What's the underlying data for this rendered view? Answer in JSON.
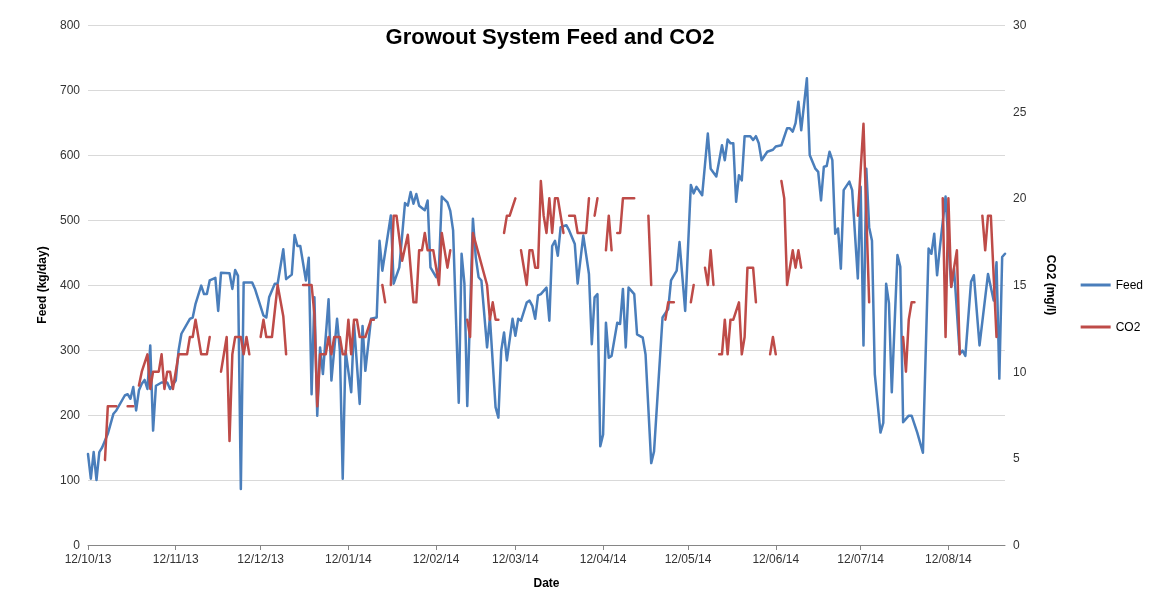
{
  "chart_data": {
    "type": "line",
    "title": "Growout System Feed and CO2",
    "xlabel": "Date",
    "ylabel": "Feed (kg/day)",
    "y2label": "CO2 (mg/l)",
    "xlim": [
      "2013-10-12",
      "2014-09-01"
    ],
    "xticks": [
      {
        "value": "2013-10-12",
        "label": "12/10/13"
      },
      {
        "value": "2013-11-12",
        "label": "12/11/13"
      },
      {
        "value": "2013-12-12",
        "label": "12/12/13"
      },
      {
        "value": "2014-01-12",
        "label": "12/01/14"
      },
      {
        "value": "2014-02-12",
        "label": "12/02/14"
      },
      {
        "value": "2014-03-12",
        "label": "12/03/14"
      },
      {
        "value": "2014-04-12",
        "label": "12/04/14"
      },
      {
        "value": "2014-05-12",
        "label": "12/05/14"
      },
      {
        "value": "2014-06-12",
        "label": "12/06/14"
      },
      {
        "value": "2014-07-12",
        "label": "12/07/14"
      },
      {
        "value": "2014-08-12",
        "label": "12/08/14"
      }
    ],
    "ylim": [
      0,
      800
    ],
    "yticks": [
      0,
      100,
      200,
      300,
      400,
      500,
      600,
      700,
      800
    ],
    "y2lim": [
      0,
      30
    ],
    "y2ticks": [
      0,
      5,
      10,
      15,
      20,
      25,
      30
    ],
    "grid": "y",
    "legend": "right",
    "marker": "none",
    "line_style": "solid",
    "series": [
      {
        "name": "Feed",
        "color": "#4a7ebb",
        "x": [
          "2013-10-12",
          "2013-10-13",
          "2013-10-14",
          "2013-10-15",
          "2013-10-16",
          "2013-10-17",
          "2013-10-19",
          "2013-10-21",
          "2013-10-22",
          "2013-10-25",
          "2013-10-26",
          "2013-10-27",
          "2013-10-28",
          "2013-10-29",
          "2013-10-30",
          "2013-10-31",
          "2013-11-01",
          "2013-11-02",
          "2013-11-03",
          "2013-11-04",
          "2013-11-05",
          "2013-11-07",
          "2013-11-09",
          "2013-11-10",
          "2013-11-12",
          "2013-11-13",
          "2013-11-14",
          "2013-11-17",
          "2013-11-18",
          "2013-11-19",
          "2013-11-21",
          "2013-11-22",
          "2013-11-23",
          "2013-11-24",
          "2013-11-26",
          "2013-11-27",
          "2013-11-28",
          "2013-12-01",
          "2013-12-02",
          "2013-12-03",
          "2013-12-04",
          "2013-12-05",
          "2013-12-06",
          "2013-12-09",
          "2013-12-10",
          "2013-12-13",
          "2013-12-14",
          "2013-12-15",
          "2013-12-17",
          "2013-12-18",
          "2013-12-20",
          "2013-12-21",
          "2013-12-23",
          "2013-12-24",
          "2013-12-25",
          "2013-12-26",
          "2013-12-28",
          "2013-12-29",
          "2013-12-30",
          "2013-12-31",
          "2014-01-01",
          "2014-01-02",
          "2014-01-03",
          "2014-01-05",
          "2014-01-06",
          "2014-01-08",
          "2014-01-09",
          "2014-01-10",
          "2014-01-11",
          "2014-01-13",
          "2014-01-14",
          "2014-01-16",
          "2014-01-17",
          "2014-01-18",
          "2014-01-20",
          "2014-01-22",
          "2014-01-23",
          "2014-01-24",
          "2014-01-27",
          "2014-01-28",
          "2014-01-30",
          "2014-02-01",
          "2014-02-02",
          "2014-02-03",
          "2014-02-04",
          "2014-02-05",
          "2014-02-06",
          "2014-02-08",
          "2014-02-09",
          "2014-02-10",
          "2014-02-12",
          "2014-02-13",
          "2014-02-14",
          "2014-02-16",
          "2014-02-17",
          "2014-02-18",
          "2014-02-20",
          "2014-02-21",
          "2014-02-22",
          "2014-02-23",
          "2014-02-25",
          "2014-02-26",
          "2014-02-27",
          "2014-02-28",
          "2014-03-02",
          "2014-03-03",
          "2014-03-05",
          "2014-03-06",
          "2014-03-07",
          "2014-03-08",
          "2014-03-09",
          "2014-03-11",
          "2014-03-12",
          "2014-03-13",
          "2014-03-14",
          "2014-03-16",
          "2014-03-17",
          "2014-03-18",
          "2014-03-19",
          "2014-03-20",
          "2014-03-21",
          "2014-03-23",
          "2014-03-24",
          "2014-03-25",
          "2014-03-26",
          "2014-03-27",
          "2014-03-28",
          "2014-03-30",
          "2014-03-31",
          "2014-04-02",
          "2014-04-03",
          "2014-04-05",
          "2014-04-07",
          "2014-04-08",
          "2014-04-09",
          "2014-04-10",
          "2014-04-11",
          "2014-04-12",
          "2014-04-13",
          "2014-04-14",
          "2014-04-15",
          "2014-04-17",
          "2014-04-18",
          "2014-04-19",
          "2014-04-20",
          "2014-04-21",
          "2014-04-23",
          "2014-04-24",
          "2014-04-26",
          "2014-04-27",
          "2014-04-29",
          "2014-04-30",
          "2014-05-03",
          "2014-05-05",
          "2014-05-06",
          "2014-05-08",
          "2014-05-09",
          "2014-05-11",
          "2014-05-13",
          "2014-05-14",
          "2014-05-15",
          "2014-05-17",
          "2014-05-19",
          "2014-05-20",
          "2014-05-22",
          "2014-05-24",
          "2014-05-25",
          "2014-05-26",
          "2014-05-27",
          "2014-05-28",
          "2014-05-29",
          "2014-05-30",
          "2014-05-31",
          "2014-06-01",
          "2014-06-03",
          "2014-06-04",
          "2014-06-05",
          "2014-06-06",
          "2014-06-07",
          "2014-06-09",
          "2014-06-11",
          "2014-06-12",
          "2014-06-14",
          "2014-06-16",
          "2014-06-17",
          "2014-06-18",
          "2014-06-19",
          "2014-06-20",
          "2014-06-21",
          "2014-06-23",
          "2014-06-24",
          "2014-06-26",
          "2014-06-27",
          "2014-06-28",
          "2014-06-29",
          "2014-06-30",
          "2014-07-01",
          "2014-07-02",
          "2014-07-03",
          "2014-07-04",
          "2014-07-05",
          "2014-07-06",
          "2014-07-08",
          "2014-07-09",
          "2014-07-11",
          "2014-07-12",
          "2014-07-13",
          "2014-07-14",
          "2014-07-15",
          "2014-07-16",
          "2014-07-17",
          "2014-07-19",
          "2014-07-20",
          "2014-07-21",
          "2014-07-22",
          "2014-07-23",
          "2014-07-25",
          "2014-07-26",
          "2014-07-27",
          "2014-07-29",
          "2014-07-30",
          "2014-08-01",
          "2014-08-03",
          "2014-08-04",
          "2014-08-05",
          "2014-08-06",
          "2014-08-07",
          "2014-08-08",
          "2014-08-09",
          "2014-08-11",
          "2014-08-12",
          "2014-08-13",
          "2014-08-14",
          "2014-08-16",
          "2014-08-17",
          "2014-08-18",
          "2014-08-20",
          "2014-08-21",
          "2014-08-23",
          "2014-08-26",
          "2014-08-28",
          "2014-08-29",
          "2014-08-30",
          "2014-08-31",
          "2014-09-01"
        ],
        "values": [
          140,
          102,
          143,
          100,
          143,
          150,
          171,
          202,
          207,
          230,
          232,
          225,
          243,
          207,
          238,
          248,
          254,
          240,
          307,
          176,
          245,
          250,
          250,
          240,
          253,
          299,
          325,
          348,
          350,
          371,
          399,
          386,
          386,
          407,
          411,
          360,
          419,
          418,
          394,
          423,
          414,
          86,
          404,
          404,
          394,
          353,
          350,
          381,
          402,
          402,
          455,
          409,
          416,
          477,
          460,
          460,
          407,
          442,
          232,
          381,
          199,
          304,
          263,
          378,
          253,
          348,
          299,
          102,
          299,
          235,
          340,
          217,
          337,
          268,
          348,
          350,
          468,
          422,
          507,
          402,
          427,
          526,
          522,
          543,
          525,
          540,
          522,
          515,
          530,
          427,
          412,
          427,
          536,
          527,
          514,
          484,
          219,
          448,
          402,
          214,
          502,
          443,
          412,
          407,
          304,
          350,
          212,
          196,
          299,
          327,
          284,
          348,
          322,
          348,
          345,
          373,
          376,
          368,
          348,
          384,
          386,
          396,
          345,
          460,
          468,
          445,
          489,
          492,
          484,
          463,
          402,
          476,
          417,
          309,
          381,
          386,
          152,
          170,
          342,
          288,
          291,
          342,
          340,
          394,
          304,
          396,
          386,
          324,
          319,
          293,
          126,
          144,
          350,
          363,
          407,
          422,
          466,
          360,
          554,
          541,
          551,
          538,
          633,
          579,
          567,
          615,
          592,
          624,
          618,
          618,
          528,
          569,
          561,
          629,
          629,
          623,
          629,
          618,
          592,
          605,
          608,
          613,
          615,
          641,
          641,
          636,
          649,
          682,
          638,
          718,
          600,
          579,
          574,
          530,
          582,
          583,
          605,
          592,
          479,
          487,
          425,
          546,
          559,
          546,
          410,
          551,
          307,
          579,
          489,
          468,
          263,
          173,
          188,
          402,
          372,
          235,
          446,
          428,
          189,
          199,
          199,
          173,
          142,
          299,
          456,
          448,
          479,
          415,
          458,
          536,
          466,
          397,
          425,
          294,
          299,
          291,
          405,
          415,
          307,
          417,
          376,
          435,
          256,
          443,
          448
        ]
      },
      {
        "name": "CO2",
        "color": "#be4b48",
        "axis": "y2",
        "x": [
          "2013-10-18",
          "2013-10-19",
          "2013-10-22",
          "2013-10-25",
          "2013-10-26",
          "2013-10-28",
          "2013-10-29",
          "2013-10-30",
          "2013-10-31",
          "2013-11-02",
          "2013-11-03",
          "2013-11-04",
          "2013-11-06",
          "2013-11-07",
          "2013-11-08",
          "2013-11-09",
          "2013-11-10",
          "2013-11-11",
          "2013-11-13",
          "2013-11-16",
          "2013-11-17",
          "2013-11-18",
          "2013-11-19",
          "2013-11-21",
          "2013-11-23",
          "2013-11-24",
          "2013-11-26",
          "2013-11-28",
          "2013-11-30",
          "2013-12-01",
          "2013-12-02",
          "2013-12-03",
          "2013-12-05",
          "2013-12-06",
          "2013-12-07",
          "2013-12-08",
          "2013-12-10",
          "2013-12-12",
          "2013-12-13",
          "2013-12-14",
          "2013-12-16",
          "2013-12-18",
          "2013-12-20",
          "2013-12-21",
          "2013-12-24",
          "2013-12-27",
          "2013-12-30",
          "2013-12-31",
          "2014-01-01",
          "2014-01-02",
          "2014-01-04",
          "2014-01-05",
          "2014-01-06",
          "2014-01-07",
          "2014-01-09",
          "2014-01-10",
          "2014-01-11",
          "2014-01-12",
          "2014-01-13",
          "2014-01-14",
          "2014-01-15",
          "2014-01-16",
          "2014-01-18",
          "2014-01-20",
          "2014-01-21",
          "2014-01-22",
          "2014-01-24",
          "2014-01-25",
          "2014-01-26",
          "2014-01-27",
          "2014-01-28",
          "2014-01-29",
          "2014-01-31",
          "2014-02-02",
          "2014-02-04",
          "2014-02-05",
          "2014-02-06",
          "2014-02-07",
          "2014-02-08",
          "2014-02-09",
          "2014-02-11",
          "2014-02-13",
          "2014-02-14",
          "2014-02-16",
          "2014-02-17",
          "2014-02-19",
          "2014-02-23",
          "2014-02-24",
          "2014-02-25",
          "2014-03-02",
          "2014-03-03",
          "2014-03-04",
          "2014-03-05",
          "2014-03-06",
          "2014-03-07",
          "2014-03-08",
          "2014-03-09",
          "2014-03-10",
          "2014-03-12",
          "2014-03-13",
          "2014-03-14",
          "2014-03-16",
          "2014-03-17",
          "2014-03-18",
          "2014-03-19",
          "2014-03-20",
          "2014-03-21",
          "2014-03-22",
          "2014-03-23",
          "2014-03-24",
          "2014-03-25",
          "2014-03-26",
          "2014-03-27",
          "2014-03-29",
          "2014-03-30",
          "2014-03-31",
          "2014-04-02",
          "2014-04-03",
          "2014-04-04",
          "2014-04-06",
          "2014-04-07",
          "2014-04-08",
          "2014-04-09",
          "2014-04-10",
          "2014-04-11",
          "2014-04-13",
          "2014-04-14",
          "2014-04-15",
          "2014-04-16",
          "2014-04-17",
          "2014-04-18",
          "2014-04-19",
          "2014-04-21",
          "2014-04-23",
          "2014-04-25",
          "2014-04-28",
          "2014-04-29",
          "2014-05-01",
          "2014-05-04",
          "2014-05-05",
          "2014-05-07",
          "2014-05-09",
          "2014-05-13",
          "2014-05-14",
          "2014-05-15",
          "2014-05-18",
          "2014-05-19",
          "2014-05-20",
          "2014-05-21",
          "2014-05-22",
          "2014-05-23",
          "2014-05-24",
          "2014-05-25",
          "2014-05-26",
          "2014-05-27",
          "2014-05-28",
          "2014-05-30",
          "2014-05-31",
          "2014-06-01",
          "2014-06-02",
          "2014-06-04",
          "2014-06-05",
          "2014-06-07",
          "2014-06-10",
          "2014-06-11",
          "2014-06-12",
          "2014-06-13",
          "2014-06-14",
          "2014-06-15",
          "2014-06-16",
          "2014-06-18",
          "2014-06-19",
          "2014-06-20",
          "2014-06-21",
          "2014-06-25",
          "2014-07-11",
          "2014-07-13",
          "2014-07-15",
          "2014-07-20",
          "2014-07-27",
          "2014-07-28",
          "2014-07-29",
          "2014-07-30",
          "2014-07-31",
          "2014-08-05",
          "2014-08-10",
          "2014-08-11",
          "2014-08-12",
          "2014-08-13",
          "2014-08-14",
          "2014-08-15",
          "2014-08-16",
          "2014-08-20",
          "2014-08-24",
          "2014-08-25",
          "2014-08-26",
          "2014-08-27",
          "2014-08-29"
        ],
        "values": [
          4.9,
          8,
          8,
          null,
          8,
          8,
          null,
          9.2,
          10,
          11,
          9,
          10,
          10,
          11,
          9,
          10,
          10,
          9,
          11,
          11,
          12,
          12,
          13,
          11,
          11,
          12,
          null,
          10,
          12,
          6,
          11,
          12,
          12,
          11,
          12,
          11,
          null,
          12,
          13,
          12,
          12,
          15,
          13.2,
          11,
          null,
          15,
          15,
          13.3,
          8,
          11,
          11,
          12,
          11,
          12,
          12,
          11,
          11,
          13,
          11,
          13,
          13,
          12,
          12,
          13,
          13,
          null,
          15,
          14,
          null,
          15,
          19,
          19,
          16.4,
          17.9,
          14,
          14,
          17,
          17,
          18,
          17,
          17,
          15,
          18,
          16,
          17,
          null,
          13,
          12,
          18,
          15,
          13,
          14,
          13,
          13,
          null,
          18,
          19,
          19,
          20,
          null,
          17,
          15,
          17,
          17,
          16,
          16,
          21,
          19,
          18,
          20,
          18,
          20,
          20,
          18,
          null,
          19,
          19,
          18,
          18,
          18,
          20,
          null,
          19,
          20,
          null,
          17,
          19,
          17,
          null,
          18,
          18,
          20,
          20,
          20,
          null,
          19,
          15,
          null,
          13,
          14,
          14,
          null,
          14,
          15,
          null,
          16,
          15,
          17,
          15,
          null,
          11,
          11,
          13,
          11,
          13,
          13,
          14,
          11,
          12,
          16,
          16,
          14,
          null,
          11,
          12,
          11,
          null,
          21,
          20,
          15,
          17,
          16,
          17,
          16,
          null,
          19,
          24.3,
          14,
          null,
          12,
          10,
          13,
          14,
          14,
          null,
          20,
          12,
          20,
          14.9,
          16,
          17,
          11,
          null,
          19,
          17,
          19,
          19,
          12
        ]
      }
    ]
  }
}
